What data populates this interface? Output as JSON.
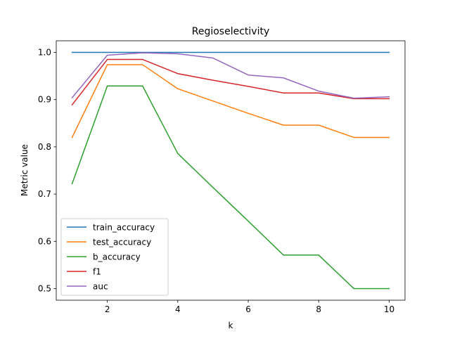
{
  "chart_data": {
    "type": "line",
    "title": "Regioselectivity",
    "xlabel": "k",
    "ylabel": "Metric value",
    "x": [
      1,
      2,
      3,
      4,
      5,
      6,
      7,
      8,
      9,
      10
    ],
    "xlim": [
      0.55,
      10.45
    ],
    "ylim": [
      0.4755,
      1.0245
    ],
    "xticks": [
      2,
      4,
      6,
      8,
      10
    ],
    "yticks": [
      0.5,
      0.6,
      0.7,
      0.8,
      0.9,
      1.0
    ],
    "ytick_labels": [
      "0.5",
      "0.6",
      "0.7",
      "0.8",
      "0.9",
      "1.0"
    ],
    "grid": false,
    "legend_position": "lower-left",
    "series": [
      {
        "name": "train_accuracy",
        "color": "#1f77b4",
        "values": [
          1.0,
          1.0,
          1.0,
          1.0,
          1.0,
          1.0,
          1.0,
          1.0,
          1.0,
          1.0
        ]
      },
      {
        "name": "test_accuracy",
        "color": "#ff7f0e",
        "values": [
          0.82,
          0.974,
          0.974,
          0.923,
          0.897,
          0.871,
          0.846,
          0.846,
          0.82,
          0.82
        ]
      },
      {
        "name": "b_accuracy",
        "color": "#2ca02c",
        "values": [
          0.722,
          0.929,
          0.929,
          0.786,
          0.714,
          0.643,
          0.571,
          0.571,
          0.5,
          0.5
        ]
      },
      {
        "name": "f1",
        "color": "#d62728",
        "values": [
          0.889,
          0.985,
          0.985,
          0.955,
          0.941,
          0.928,
          0.914,
          0.914,
          0.902,
          0.902
        ]
      },
      {
        "name": "auc",
        "color": "#9467bd",
        "values": [
          0.904,
          0.994,
          0.999,
          0.997,
          0.988,
          0.952,
          0.946,
          0.918,
          0.903,
          0.906
        ]
      }
    ]
  }
}
